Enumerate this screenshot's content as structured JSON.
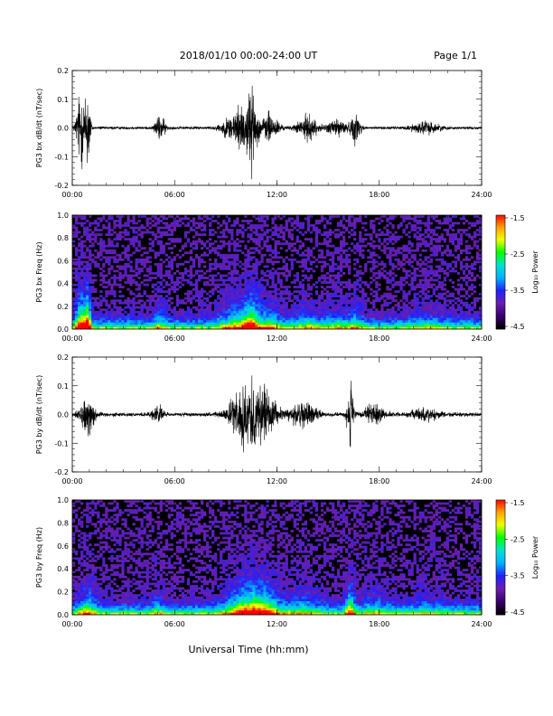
{
  "header": {
    "title": "2018/01/10   00:00-24:00 UT",
    "page": "Page 1/1"
  },
  "footer": {
    "xlabel": "Universal Time (hh:mm)"
  },
  "colorbar": {
    "label": "Log₁₀ Power",
    "ticks": [
      "-1.5",
      "-2.5",
      "-3.5",
      "-4.5"
    ],
    "range": [
      -4.5,
      -1.5
    ],
    "colors": [
      "#000000",
      "#3a0070",
      "#6a1fb0",
      "#2020ff",
      "#00b0ff",
      "#00e0d0",
      "#00ff00",
      "#f0ff00",
      "#ffa000",
      "#ff0000"
    ]
  },
  "chart_data": [
    {
      "type": "line",
      "title": "",
      "xlabel": "",
      "ylabel": "PG3 bx dB/dt (nT/sec)",
      "xlim": [
        0,
        24
      ],
      "ylim": [
        -0.2,
        0.2
      ],
      "xticks": [
        "00:00",
        "06:00",
        "12:00",
        "18:00",
        "24:00"
      ],
      "yticks": [
        "0.2",
        "0.1",
        "0.0",
        "-0.1",
        "-0.2"
      ],
      "bursts": [
        {
          "t": 0.5,
          "w": 0.25,
          "a": 0.17
        },
        {
          "t": 0.9,
          "w": 0.15,
          "a": 0.2
        },
        {
          "t": 5.15,
          "w": 0.3,
          "a": 0.05
        },
        {
          "t": 9.9,
          "w": 0.9,
          "a": 0.09
        },
        {
          "t": 10.5,
          "w": 0.3,
          "a": 0.11
        },
        {
          "t": 11.6,
          "w": 0.5,
          "a": 0.06
        },
        {
          "t": 13.8,
          "w": 0.6,
          "a": 0.05
        },
        {
          "t": 15.5,
          "w": 0.5,
          "a": 0.04
        },
        {
          "t": 16.6,
          "w": 0.3,
          "a": 0.06
        },
        {
          "t": 20.7,
          "w": 0.8,
          "a": 0.025
        }
      ],
      "noise": 0.006
    },
    {
      "type": "heatmap",
      "title": "",
      "xlabel": "",
      "ylabel": "PG3 bx Freq (Hz)",
      "xlim": [
        0,
        24
      ],
      "ylim": [
        0,
        1.0
      ],
      "xticks": [
        "00:00",
        "06:00",
        "12:00",
        "18:00",
        "24:00"
      ],
      "yticks": [
        "1.0",
        "0.8",
        "0.6",
        "0.4",
        "0.2",
        "0.0"
      ],
      "zlabel": "Log₁₀ Power",
      "zlim": [
        -4.5,
        -1.5
      ]
    },
    {
      "type": "line",
      "title": "",
      "xlabel": "",
      "ylabel": "PG3 by dB/dt (nT/sec)",
      "xlim": [
        0,
        24
      ],
      "ylim": [
        -0.2,
        0.2
      ],
      "xticks": [
        "00:00",
        "06:00",
        "12:00",
        "18:00",
        "24:00"
      ],
      "yticks": [
        "0.2",
        "0.1",
        "0.0",
        "-0.1",
        "-0.2"
      ],
      "bursts": [
        {
          "t": 0.9,
          "w": 0.4,
          "a": 0.08
        },
        {
          "t": 5.0,
          "w": 0.3,
          "a": 0.04
        },
        {
          "t": 10.2,
          "w": 0.9,
          "a": 0.13
        },
        {
          "t": 11.3,
          "w": 0.7,
          "a": 0.09
        },
        {
          "t": 13.5,
          "w": 0.8,
          "a": 0.05
        },
        {
          "t": 16.3,
          "w": 0.2,
          "a": 0.13
        },
        {
          "t": 17.7,
          "w": 0.6,
          "a": 0.04
        },
        {
          "t": 20.7,
          "w": 0.8,
          "a": 0.025
        }
      ],
      "noise": 0.008
    },
    {
      "type": "heatmap",
      "title": "",
      "xlabel": "",
      "ylabel": "PG3 by Freq (Hz)",
      "xlim": [
        0,
        24
      ],
      "ylim": [
        0,
        1.0
      ],
      "xticks": [
        "00:00",
        "06:00",
        "12:00",
        "18:00",
        "24:00"
      ],
      "yticks": [
        "1.0",
        "0.8",
        "0.6",
        "0.4",
        "0.2",
        "0.0"
      ],
      "zlabel": "Log₁₀ Power",
      "zlim": [
        -4.5,
        -1.5
      ]
    }
  ]
}
